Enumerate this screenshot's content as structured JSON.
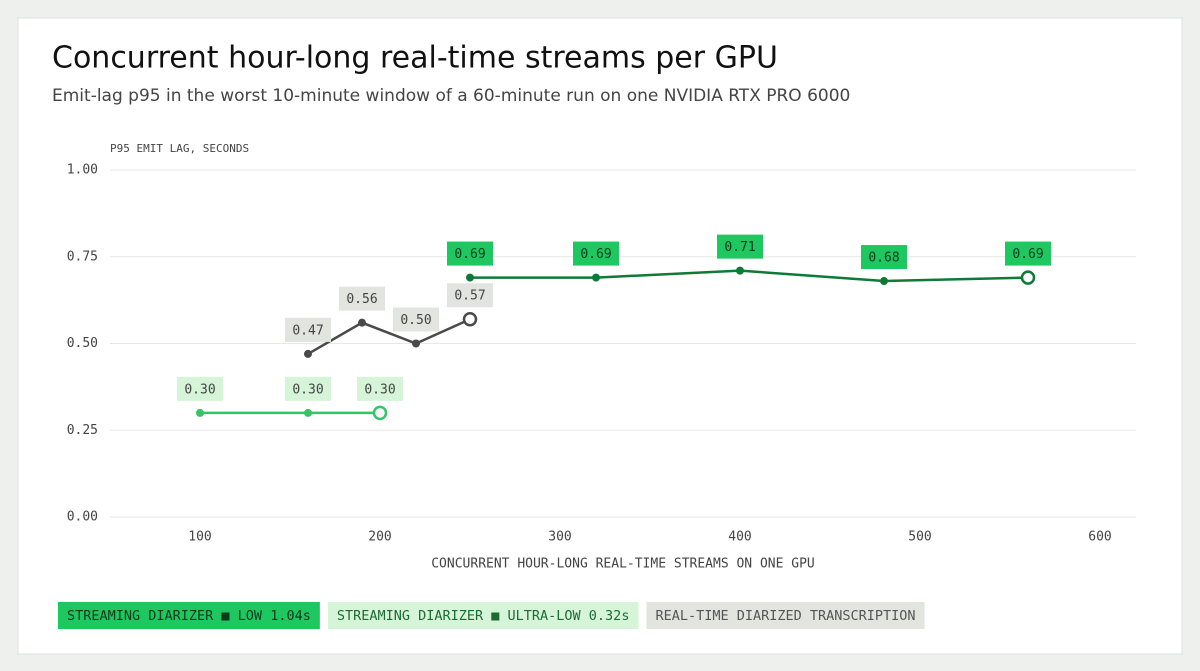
{
  "chart_data": {
    "type": "line",
    "title": "Concurrent hour-long real-time streams per GPU",
    "subtitle": "Emit-lag p95 in the worst 10-minute window of a 60-minute run on one NVIDIA RTX PRO 6000",
    "y_label": "P95 EMIT LAG, SECONDS",
    "x_label": "CONCURRENT HOUR-LONG REAL-TIME STREAMS ON ONE GPU",
    "xlim": [
      50,
      620
    ],
    "xticks": [
      100,
      200,
      300,
      400,
      500,
      600
    ],
    "ylim": [
      0,
      1
    ],
    "yticks": [
      {
        "value": 0,
        "label": "0.00"
      },
      {
        "value": 0.25,
        "label": "0.25"
      },
      {
        "value": 0.5,
        "label": "0.50"
      },
      {
        "value": 0.75,
        "label": "0.75"
      },
      {
        "value": 1,
        "label": "1.00"
      }
    ],
    "grid": true,
    "series": [
      {
        "name": "STREAMING DIARIZER ■ LOW 1.04s",
        "color": "#0e7a36",
        "label_color": "#1ec760",
        "x": [
          250,
          320,
          400,
          480,
          560
        ],
        "values": [
          0.69,
          0.69,
          0.71,
          0.68,
          0.69
        ],
        "value_labels": [
          "0.69",
          "0.69",
          "0.71",
          "0.68",
          "0.69"
        ]
      },
      {
        "name": "STREAMING DIARIZER ■ ULTRA-LOW 0.32s",
        "color": "#35c466",
        "label_color": "#d5f4d8",
        "x": [
          100,
          160,
          200
        ],
        "values": [
          0.3,
          0.3,
          0.3
        ],
        "value_labels": [
          "0.30",
          "0.30",
          "0.30"
        ]
      },
      {
        "name": "REAL-TIME DIARIZED TRANSCRIPTION",
        "color": "#4a4a4a",
        "label_color": "#e2e4e0",
        "x": [
          160,
          190,
          220,
          250
        ],
        "values": [
          0.47,
          0.56,
          0.5,
          0.57
        ],
        "value_labels": [
          "0.47",
          "0.56",
          "0.50",
          "0.57"
        ]
      }
    ]
  }
}
